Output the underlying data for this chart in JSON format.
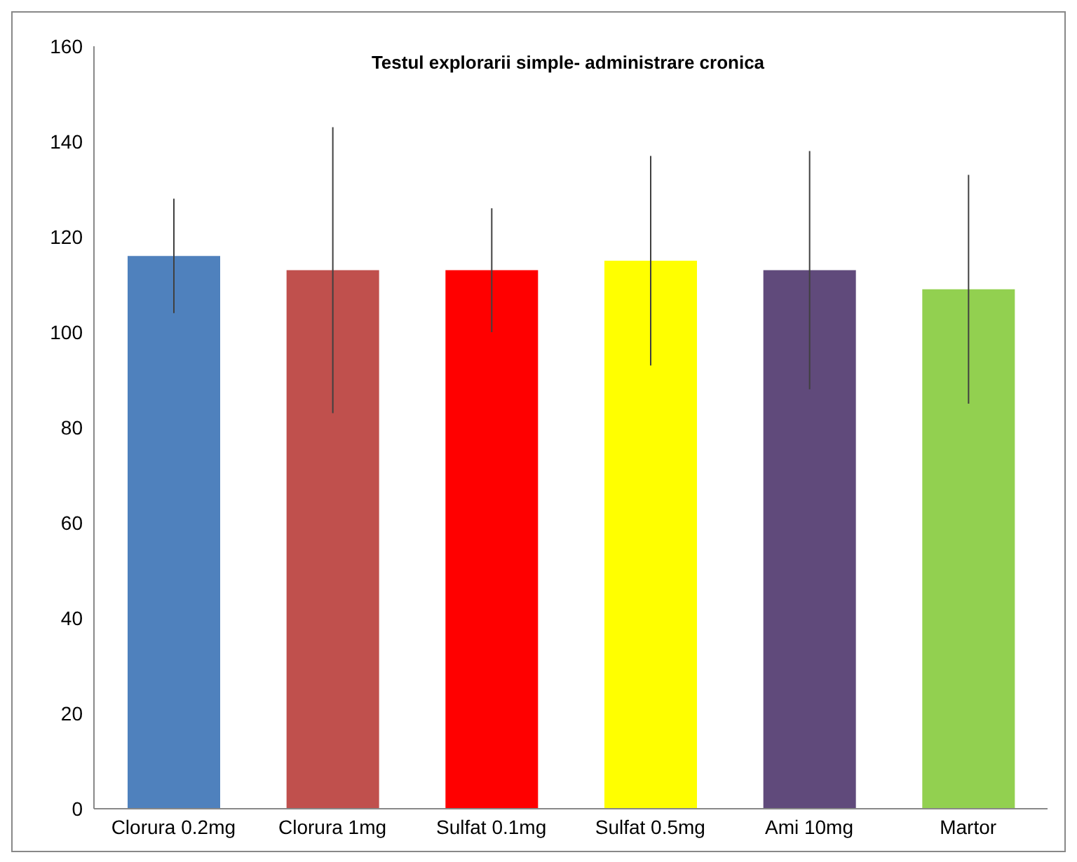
{
  "chart_data": {
    "type": "bar",
    "title": "Testul explorarii simple- administrare cronica",
    "categories": [
      "Clorura 0.2mg",
      "Clorura 1mg",
      "Sulfat 0.1mg",
      "Sulfat 0.5mg",
      "Ami 10mg",
      "Martor"
    ],
    "values": [
      116,
      113,
      113,
      115,
      113,
      109
    ],
    "errors": [
      12,
      30,
      13,
      22,
      25,
      24
    ],
    "colors": [
      "#4f81bd",
      "#c0504d",
      "#ff0000",
      "#ffff00",
      "#604a7b",
      "#92d050"
    ],
    "ylim": [
      0,
      160
    ],
    "yticks": [
      0,
      20,
      40,
      60,
      80,
      100,
      120,
      140,
      160
    ],
    "grid": false,
    "legend": false
  }
}
